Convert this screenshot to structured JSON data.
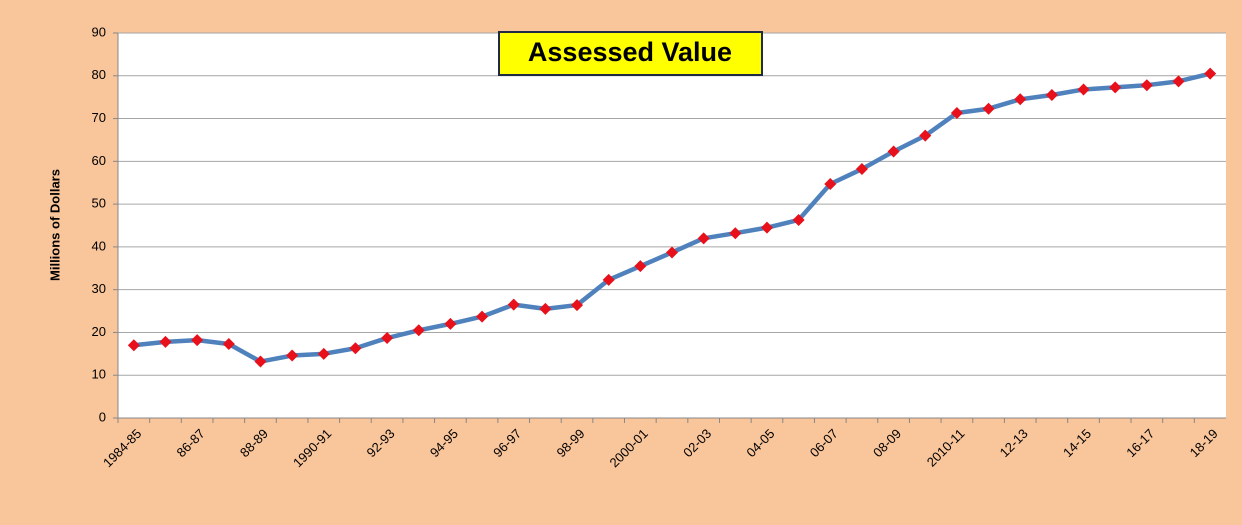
{
  "chart_data": {
    "type": "line",
    "title": "Assessed Value",
    "y_label": "Millions of Dollars",
    "categories": [
      "1984-85",
      null,
      "86-87",
      null,
      "88-89",
      null,
      "1990-91",
      null,
      "92-93",
      null,
      "94-95",
      null,
      "96-97",
      null,
      "98-99",
      null,
      "2000-01",
      null,
      "02-03",
      null,
      "04-05",
      null,
      "06-07",
      null,
      "08-09",
      null,
      "2010-11",
      null,
      "12-13",
      null,
      "14-15",
      null,
      "16-17",
      null,
      "18-19"
    ],
    "series": [
      {
        "name": "Assessed Value",
        "color": "#4f81bd",
        "marker_color": "#e8101a",
        "values": [
          17,
          17.8,
          18.2,
          17.3,
          13.2,
          14.6,
          15,
          16.3,
          18.7,
          20.5,
          22,
          23.7,
          26.5,
          25.5,
          26.4,
          32.3,
          35.5,
          38.7,
          42,
          43.2,
          44.5,
          46.3,
          54.7,
          58.2,
          62.3,
          66,
          71.3,
          72.3,
          74.5,
          75.5,
          76.8,
          77.3,
          77.8,
          78.7,
          80.5
        ]
      }
    ],
    "ylim": [
      0,
      90
    ],
    "yticks": [
      0,
      10,
      20,
      30,
      40,
      50,
      60,
      70,
      80,
      90
    ],
    "grid": true
  }
}
